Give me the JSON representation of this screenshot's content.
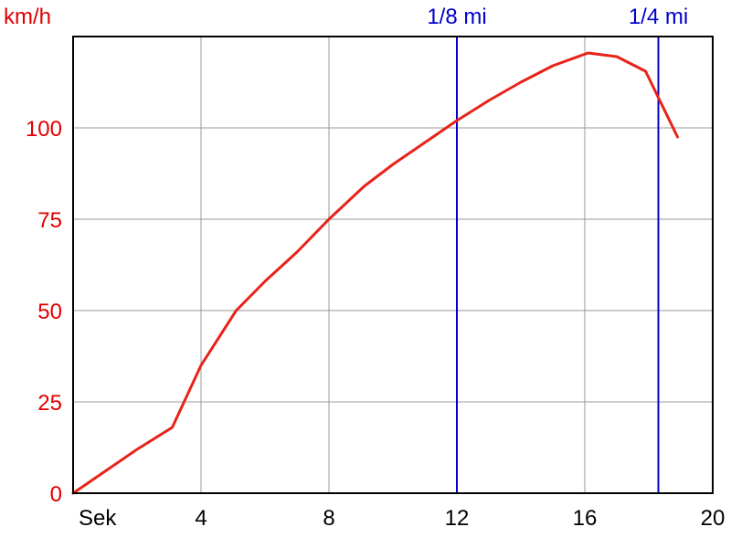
{
  "chart_data": {
    "type": "line",
    "title": "",
    "xlabel": "Sek",
    "ylabel": "km/h",
    "xlim": [
      0,
      20
    ],
    "ylim": [
      0,
      125
    ],
    "x_ticks": [
      4,
      8,
      12,
      16,
      20
    ],
    "y_ticks": [
      0,
      25,
      50,
      75,
      100
    ],
    "grid": true,
    "colors": {
      "series": "#e8231a",
      "axis_labels": "#e00000",
      "markers": "#0000cc",
      "grid": "#999999",
      "frame": "#000000"
    },
    "series": [
      {
        "x": [
          0,
          1,
          2,
          3.1,
          4,
          5.1,
          6,
          7,
          8,
          9.1,
          10,
          11,
          12,
          13,
          14,
          15,
          16.1,
          17,
          17.9,
          18.9
        ],
        "y": [
          0,
          6,
          12,
          18,
          35,
          50,
          58,
          66,
          75,
          84,
          90,
          96,
          102,
          107.5,
          112.5,
          117,
          120.5,
          119.5,
          115.5,
          97.5
        ]
      }
    ],
    "markers": [
      {
        "label": "1/8 mi",
        "x": 12
      },
      {
        "label": "1/4 mi",
        "x": 18.3
      }
    ]
  }
}
